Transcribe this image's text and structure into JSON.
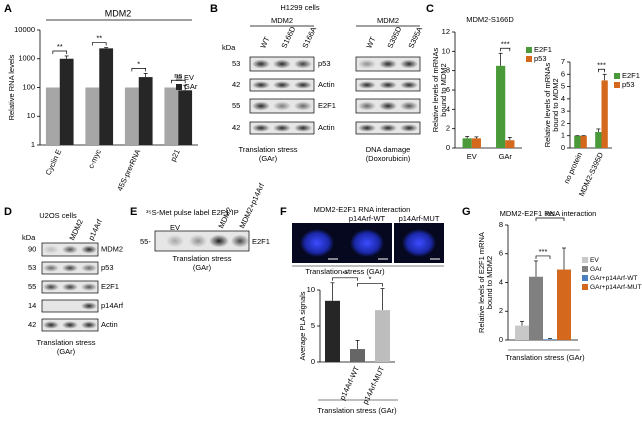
{
  "panel_labels": [
    "A",
    "B",
    "C",
    "D",
    "E",
    "F",
    "G"
  ],
  "blot_B": {
    "title": "H1299 cells",
    "groups": [
      "MDM2",
      "MDM2"
    ],
    "lanes_left": [
      "WT",
      "S166D",
      "S166A"
    ],
    "lanes_right": [
      "WT",
      "S395D",
      "S395A"
    ],
    "kda_label": "kDa",
    "kda": [
      53,
      42,
      55,
      42
    ],
    "proteins": [
      "p53",
      "Actin",
      "E2F1",
      "Actin"
    ],
    "caption_left": [
      "Translation stress",
      "(GAr)"
    ],
    "caption_right": [
      "DNA damage",
      "(Doxorubicin)"
    ]
  },
  "blot_D": {
    "title": "U2OS cells",
    "kda_label": "kDa",
    "lanes": [
      "MDM2",
      "p14Arf"
    ],
    "kda": [
      90,
      53,
      55,
      14,
      42
    ],
    "proteins": [
      "MDM2",
      "p53",
      "E2F1",
      "p14Arf",
      "Actin"
    ],
    "caption": [
      "Translation stress",
      "(GAr)"
    ]
  },
  "blot_E": {
    "title": "³⁵S-Met pulse label E2F1 IP",
    "kda": "55-",
    "lanes": [
      "EV",
      "MDM2",
      "MDM2+p14Arf"
    ],
    "protein": "E2F1",
    "caption": [
      "Translation stress",
      "(GAr)"
    ]
  },
  "panel_F_images": {
    "title": "MDM2-E2F1 RNA interaction",
    "labels": [
      "p14Arf-WT",
      "p14Arf-MUT"
    ],
    "caption": "Translation stress (GAr)"
  },
  "chart_data": [
    {
      "type": "bar",
      "title": "MDM2",
      "y_label": "Relative RNA levels",
      "log_scale": true,
      "categories": [
        "Cyclin E",
        "c-myc",
        "45S-prerRNA",
        "p21"
      ],
      "series": [
        {
          "name": "EV",
          "color": "#a6a6a6",
          "values": [
            100,
            100,
            100,
            100
          ]
        },
        {
          "name": "GAr",
          "color": "#262626",
          "values": [
            1000,
            2300,
            230,
            80
          ],
          "errors": [
            250,
            150,
            80,
            40
          ]
        }
      ],
      "ylim": [
        1,
        10000
      ],
      "yticks": [
        1,
        10,
        100,
        1000,
        10000
      ],
      "annotations": [
        "**",
        "**",
        "*",
        "ns"
      ]
    },
    {
      "type": "bar",
      "title": "MDM2-S166D",
      "y_label": [
        "Relative levels of mRNAs",
        "bound to MDM2"
      ],
      "categories": [
        "EV",
        "GAr"
      ],
      "series": [
        {
          "name": "E2F1",
          "color": "#4a9a3a",
          "values": [
            1,
            8.5
          ],
          "errors": [
            0.2,
            1.3
          ]
        },
        {
          "name": "p53",
          "color": "#d4691e",
          "values": [
            1,
            0.8
          ],
          "errors": [
            0.15,
            0.3
          ]
        }
      ],
      "ylim": [
        0,
        12
      ],
      "yticks": [
        0,
        2,
        4,
        6,
        8,
        10,
        12
      ],
      "annotations": [
        "***"
      ]
    },
    {
      "type": "bar",
      "y_label": [
        "Relative levels of mRNAs",
        "bound to MDM2"
      ],
      "categories": [
        "no protein",
        "MDM2-S395D"
      ],
      "series": [
        {
          "name": "E2F1",
          "color": "#4a9a3a",
          "values": [
            1,
            1.3
          ],
          "errors": [
            0,
            0.25
          ]
        },
        {
          "name": "p53",
          "color": "#d4691e",
          "values": [
            1,
            5.5
          ],
          "errors": [
            0,
            0.5
          ]
        }
      ],
      "ylim": [
        0,
        7
      ],
      "yticks": [
        0,
        1,
        2,
        3,
        4,
        5,
        6,
        7
      ],
      "annotations": [
        "***"
      ]
    },
    {
      "type": "bar",
      "y_label": "Average PLA signals",
      "x_label": "Translation stress (GAr)",
      "categories": [
        null,
        "p14Arf-WT",
        "p14Arf-MUT"
      ],
      "series": [
        {
          "colors": [
            "#262626",
            "#666666",
            "#bdbdbd"
          ],
          "values": [
            8.5,
            1.8,
            7.2
          ],
          "errors": [
            2.5,
            1.2,
            3
          ]
        }
      ],
      "ylim": [
        0,
        10
      ],
      "yticks": [
        0,
        5,
        10
      ],
      "annotations": [
        "**",
        "*"
      ]
    },
    {
      "type": "bar",
      "title": "MDM2-E2F1 RNA interaction",
      "y_label": [
        "Relative levels of E2F1 mRNA",
        "bound to MDM2"
      ],
      "x_label": "Translation stress (GAr)",
      "categories": [
        null
      ],
      "series": [
        {
          "name": "EV",
          "color": "#c8c8c8",
          "values": [
            1
          ],
          "errors": [
            0.3
          ]
        },
        {
          "name": "GAr",
          "color": "#808080",
          "values": [
            4.4
          ],
          "errors": [
            1.1
          ]
        },
        {
          "name": "GAr+p14Arf-WT",
          "color": "#4a7fc1",
          "values": [
            0.05
          ],
          "errors": [
            0.05
          ]
        },
        {
          "name": "GAr+p14Arf-MUT",
          "color": "#d4691e",
          "values": [
            4.9
          ],
          "errors": [
            1.5
          ]
        }
      ],
      "ylim": [
        0,
        8
      ],
      "yticks": [
        0,
        2,
        4,
        6,
        8
      ],
      "annotations": [
        "***",
        "ns"
      ]
    }
  ]
}
